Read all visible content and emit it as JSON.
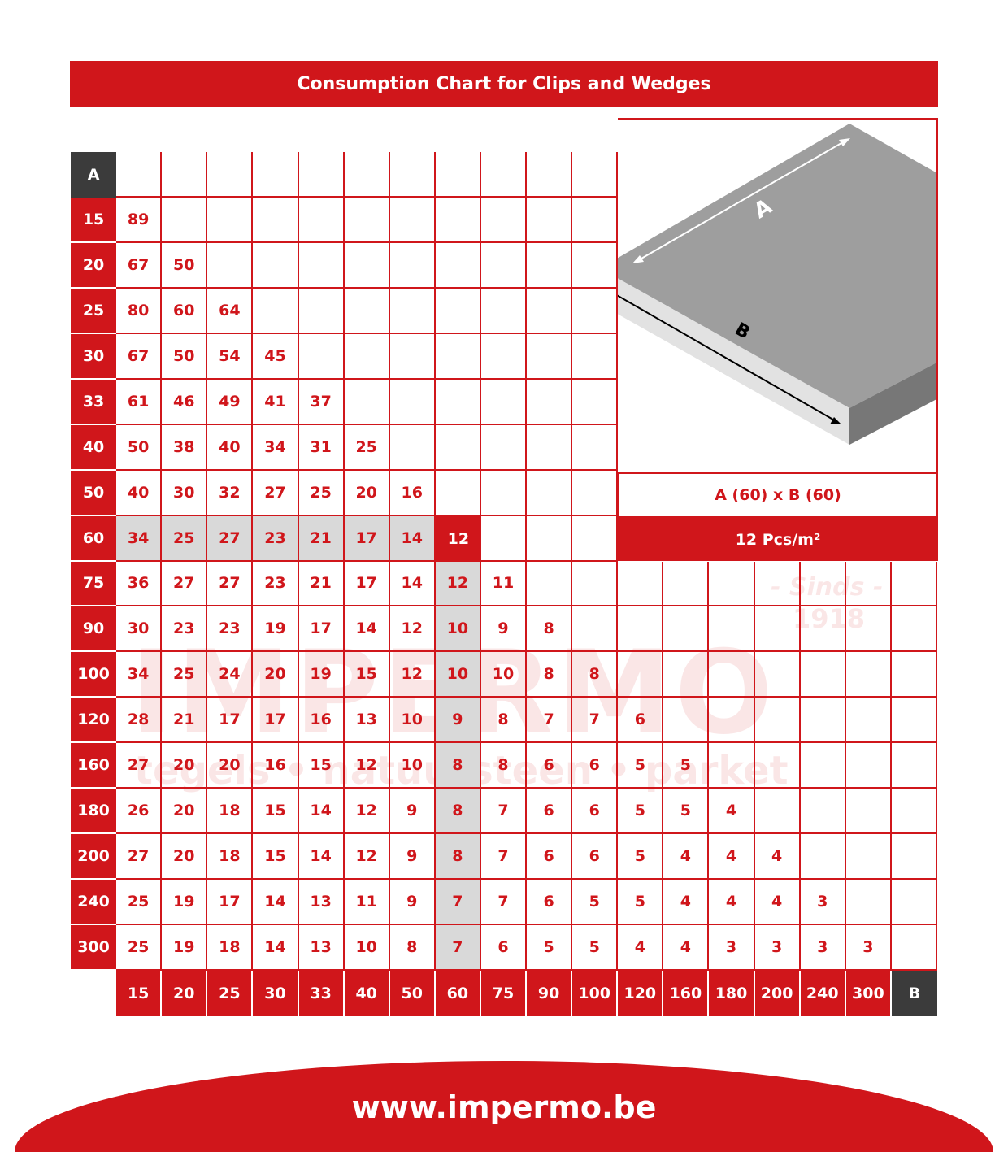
{
  "title": "Consumption Chart for Clips and Wedges",
  "chart_data": {
    "type": "table",
    "title": "Consumption Chart for Clips and Wedges",
    "row_axis_label": "A",
    "col_axis_label": "B",
    "rows": [
      15,
      20,
      25,
      30,
      33,
      40,
      50,
      60,
      75,
      90,
      100,
      120,
      160,
      180,
      200,
      240,
      300
    ],
    "cols": [
      15,
      20,
      25,
      30,
      33,
      40,
      50,
      60,
      75,
      90,
      100,
      120,
      160,
      180,
      200,
      240,
      300
    ],
    "values": [
      [
        89
      ],
      [
        67,
        50
      ],
      [
        80,
        60,
        64
      ],
      [
        67,
        50,
        54,
        45
      ],
      [
        61,
        46,
        49,
        41,
        37
      ],
      [
        50,
        38,
        40,
        34,
        31,
        25
      ],
      [
        40,
        30,
        32,
        27,
        25,
        20,
        16
      ],
      [
        34,
        25,
        27,
        23,
        21,
        17,
        14,
        12
      ],
      [
        36,
        27,
        27,
        23,
        21,
        17,
        14,
        12,
        11
      ],
      [
        30,
        23,
        23,
        19,
        17,
        14,
        12,
        10,
        9,
        8
      ],
      [
        34,
        25,
        24,
        20,
        19,
        15,
        12,
        10,
        10,
        8,
        8
      ],
      [
        28,
        21,
        17,
        17,
        16,
        13,
        10,
        9,
        8,
        7,
        7,
        6
      ],
      [
        27,
        20,
        20,
        16,
        15,
        12,
        10,
        8,
        8,
        6,
        6,
        5,
        5
      ],
      [
        26,
        20,
        18,
        15,
        14,
        12,
        9,
        8,
        7,
        6,
        6,
        5,
        5,
        4
      ],
      [
        27,
        20,
        18,
        15,
        14,
        12,
        9,
        8,
        7,
        6,
        6,
        5,
        4,
        4,
        4
      ],
      [
        25,
        19,
        17,
        14,
        13,
        11,
        9,
        7,
        7,
        6,
        5,
        5,
        4,
        4,
        4,
        3
      ],
      [
        25,
        19,
        18,
        14,
        13,
        10,
        8,
        7,
        6,
        5,
        5,
        4,
        4,
        3,
        3,
        3,
        3
      ]
    ],
    "highlight": {
      "A": 60,
      "B": 60,
      "value": 12
    }
  },
  "example": {
    "dimensions": "A (60) x B (60)",
    "result": "12 Pcs/m²"
  },
  "illustration": {
    "label_a": "A",
    "label_b": "B"
  },
  "watermark": {
    "brand": "IMPERMO",
    "since": "- Sinds -",
    "year": "1918",
    "tagline": "tegels  •  natuursteen  •  parket"
  },
  "footer": {
    "url": "www.impermo.be"
  },
  "colors": {
    "brand_red": "#d0161b",
    "dark": "#3b3b3b",
    "highlight_gray": "#d9d9d9"
  }
}
